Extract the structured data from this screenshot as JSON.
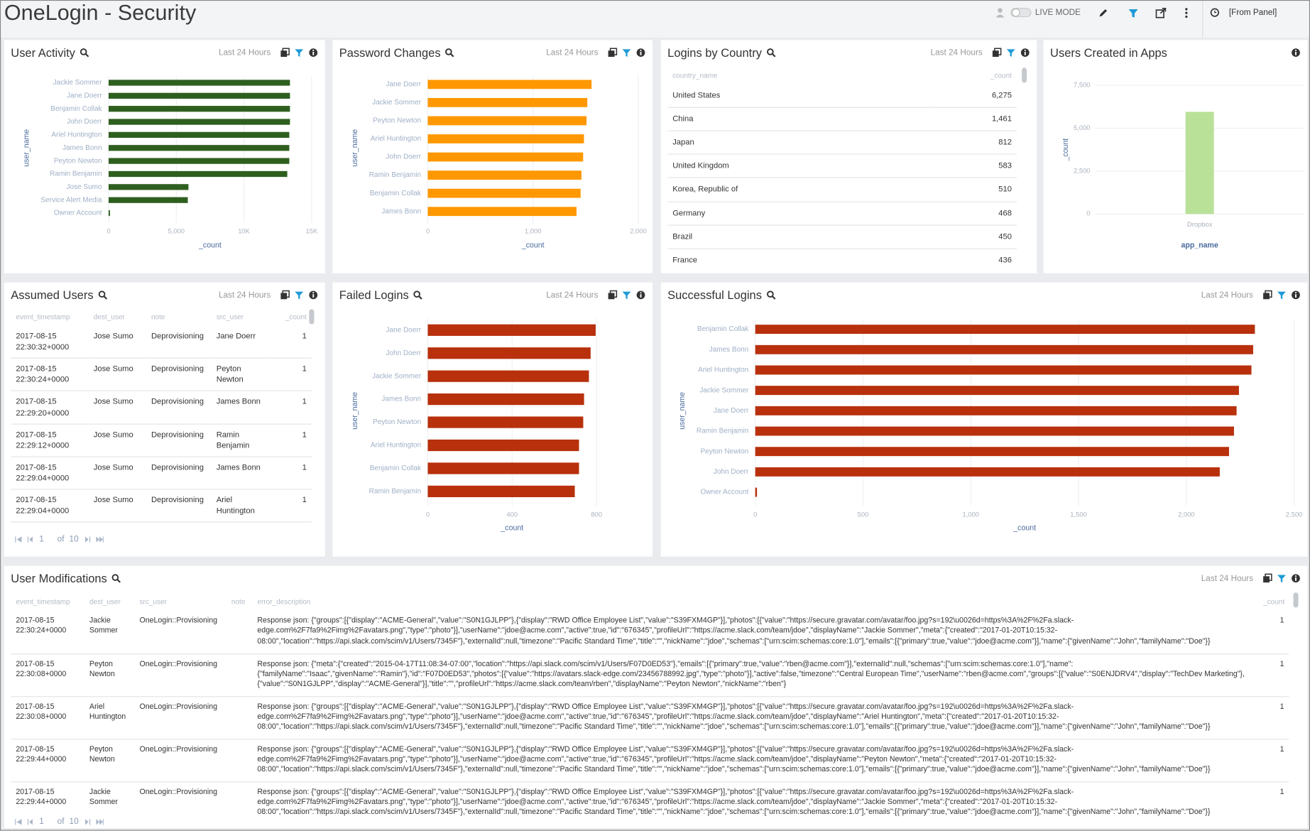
{
  "header": {
    "title": "OneLogin - Security",
    "live_mode": "LIVE MODE",
    "time_range": "[From Panel]"
  },
  "chart_data": [
    {
      "type": "barh",
      "title": "User Activity",
      "subtitle": "Last 24 Hours",
      "x_label": "_count",
      "y_label": "user_name",
      "categories": [
        "Jackie Sommer",
        "Jane Doerr",
        "Benjamin Collak",
        "John Doerr",
        "Ariel Huntington",
        "James Bonn",
        "Peyton Newton",
        "Ramin Benjamin",
        "Jose Sumo",
        "Service Alert Media",
        "Owner Account"
      ],
      "values": [
        13400,
        13400,
        13400,
        13400,
        13350,
        13350,
        13350,
        13200,
        5900,
        5850,
        100
      ],
      "color": "#2e5f1f",
      "xlim": [
        0,
        15000
      ],
      "xticks": [
        0,
        {
          "value": 5000,
          "label": "5,000"
        },
        {
          "value": 10000,
          "label": "10K"
        },
        {
          "value": 15000,
          "label": "15K"
        }
      ]
    },
    {
      "type": "barh",
      "title": "Password Changes",
      "subtitle": "Last 24 Hours",
      "x_label": "_count",
      "y_label": "user_name",
      "categories": [
        "Jane Doerr",
        "Jackie Sommer",
        "Peyton Newton",
        "Ariel Huntington",
        "John Doerr",
        "Ramin Benjamin",
        "Benjamin Collak",
        "James Bonn"
      ],
      "values": [
        1556,
        1516,
        1508,
        1484,
        1476,
        1460,
        1452,
        1413
      ],
      "color": "#ff9800",
      "xlim": [
        0,
        2000
      ],
      "xticks": [
        0,
        {
          "value": 1000,
          "label": "1,000"
        },
        {
          "value": 2000,
          "label": "2,000"
        }
      ]
    },
    {
      "type": "bar",
      "title": "Users Created in Apps",
      "x_label": "app_name",
      "y_label": "_count",
      "categories": [
        "Dropbox"
      ],
      "values": [
        5950
      ],
      "color": "#b9e197",
      "ylim": [
        0,
        7500
      ],
      "yticks": [
        0,
        {
          "value": 2500,
          "label": "2,500"
        },
        {
          "value": 5000,
          "label": "5,000"
        },
        {
          "value": 7500,
          "label": "7,500"
        }
      ]
    },
    {
      "type": "barh",
      "title": "Failed Logins",
      "subtitle": "Last 24 Hours",
      "x_label": "_count",
      "y_label": "user_name",
      "categories": [
        "Jane Doerr",
        "John Doerr",
        "Jackie Sommer",
        "James Bonn",
        "Peyton Newton",
        "Ariel Huntington",
        "Benjamin Collak",
        "Ramin Benjamin"
      ],
      "values": [
        796,
        772,
        764,
        741,
        737,
        717,
        717,
        697
      ],
      "color": "#b8300c",
      "xlim": [
        0,
        800
      ],
      "xticks": [
        0,
        400,
        800
      ]
    },
    {
      "type": "barh",
      "title": "Successful Logins",
      "subtitle": "Last 24 Hours",
      "x_label": "_count",
      "y_label": "user_name",
      "categories": [
        "Benjamin Collak",
        "James Bonn",
        "Ariel Huntington",
        "Jackie Sommer",
        "Jane Doerr",
        "Ramin Benjamin",
        "Peyton Newton",
        "John Doerr",
        "Owner Account"
      ],
      "values": [
        2318,
        2310,
        2302,
        2244,
        2233,
        2221,
        2198,
        2155,
        8
      ],
      "color": "#b8300c",
      "xlim": [
        0,
        2500
      ],
      "xticks": [
        0,
        500,
        {
          "value": 1000,
          "label": "1,000"
        },
        {
          "value": 1500,
          "label": "1,500"
        },
        {
          "value": 2000,
          "label": "2,000"
        },
        {
          "value": 2500,
          "label": "2,500"
        }
      ]
    }
  ],
  "tables": [
    {
      "title": "Logins by Country",
      "subtitle": "Last 24 Hours",
      "columns": [
        "country_name",
        "_count"
      ],
      "rows": [
        [
          "United States",
          "6,275"
        ],
        [
          "China",
          "1,461"
        ],
        [
          "Japan",
          "812"
        ],
        [
          "United Kingdom",
          "583"
        ],
        [
          "Korea, Republic of",
          "510"
        ],
        [
          "Germany",
          "468"
        ],
        [
          "Brazil",
          "450"
        ],
        [
          "France",
          "436"
        ]
      ]
    },
    {
      "title": "Assumed Users",
      "subtitle": "Last 24 Hours",
      "columns": [
        "event_timestamp",
        "dest_user",
        "note",
        "src_user",
        "_count"
      ],
      "rows": [
        [
          "2017-08-15 22:30:32+0000",
          "Jose Sumo",
          "Deprovisioning",
          "Jane Doerr",
          1
        ],
        [
          "2017-08-15 22:30:24+0000",
          "Jose Sumo",
          "Deprovisioning",
          "Peyton Newton",
          1
        ],
        [
          "2017-08-15 22:29:20+0000",
          "Jose Sumo",
          "Deprovisioning",
          "James Bonn",
          1
        ],
        [
          "2017-08-15 22:29:12+0000",
          "Jose Sumo",
          "Deprovisioning",
          "Ramin Benjamin",
          1
        ],
        [
          "2017-08-15 22:29:04+0000",
          "Jose Sumo",
          "Deprovisioning",
          "James Bonn",
          1
        ],
        [
          "2017-08-15 22:29:04+0000",
          "Jose Sumo",
          "Deprovisioning",
          "Ariel Huntington",
          1
        ]
      ],
      "pagination": {
        "page": 1,
        "of": "of",
        "pages": 10
      }
    },
    {
      "title": "User Modifications",
      "subtitle": "Last 24 Hours",
      "columns": [
        "event_timestamp",
        "dest_user",
        "src_user",
        "note",
        "error_description",
        "_count"
      ],
      "rows": [
        [
          "2017-08-15 22:30:24+0000",
          "Jackie Sommer",
          "OneLogin::Provisioning",
          null,
          "Response json: {\"groups\":[{\"display\":\"ACME-General\",\"value\":\"S0N1GJLPP\"},{\"display\":\"RWD Office Employee List\",\"value\":\"S39FXM4GP\"}],\"photos\":[{\"value\":\"https://secure.gravatar.com/avatar/foo.jpg?s=192\\u0026d=https%3A%2F%2Fa.slack-edge.com%2F7fa9%2Fimg%2Favatars.png\",\"type\":\"photo\"}],\"userName\":\"jdoe@acme.com\",\"active\":true,\"id\":\"676345\",\"profileUrl\":\"https://acme.slack.com/team/jdoe\",\"displayName\":\"Jackie Sommer\",\"meta\":{\"created\":\"2017-01-20T10:15:32-08:00\",\"location\":\"https://api.slack.com/scim/v1/Users/7345F\"},\"externalId\":null,\"timezone\":\"Pacific Standard Time\",\"title\":\"\",\"nickName\":\"jdoe\",\"schemas\":[\"urn:scim:schemas:core:1.0\"],\"emails\":[{\"primary\":true,\"value\":\"jdoe@acme.com\"}],\"name\":{\"givenName\":\"John\",\"familyName\":\"Doe\"}}",
          1
        ],
        [
          "2017-08-15 22:30:08+0000",
          "Peyton Newton",
          "OneLogin::Provisioning",
          null,
          "Response json: {\"meta\":{\"created\":\"2015-04-17T11:08:34-07:00\",\"location\":\"https://api.slack.com/scim/v1/Users/F07D0ED53\"},\"emails\":[{\"primary\":true,\"value\":\"rben@acme.com\"}],\"externalId\":null,\"schemas\":[\"urn:scim:schemas:core:1.0\"],\"name\":{\"familyName\":\"Isaac\",\"givenName\":\"Ramin\"},\"id\":\"F07D0ED53\",\"photos\":[{\"value\":\"https://avatars.slack-edge.com/23456788992.jpg\",\"type\":\"photo\"}],\"active\":false,\"timezone\":\"Central European Time\",\"userName\":\"rben@acme.com\",\"groups\":[{\"value\":\"S0ENJDRV4\",\"display\":\"TechDev Marketing\"},{\"value\":\"S0N1GJLPP\",\"display\":\"ACME-General\"}],\"title\":\"\",\"profileUrl\":\"https://acme.slack.com/team/rben\",\"displayName\":\"Peyton Newton\",\"nickName\":\"rben\"}",
          1
        ],
        [
          "2017-08-15 22:30:08+0000",
          "Ariel Huntington",
          "OneLogin::Provisioning",
          null,
          "Response json: {\"groups\":[{\"display\":\"ACME-General\",\"value\":\"S0N1GJLPP\"},{\"display\":\"RWD Office Employee List\",\"value\":\"S39FXM4GP\"}],\"photos\":[{\"value\":\"https://secure.gravatar.com/avatar/foo.jpg?s=192\\u0026d=https%3A%2F%2Fa.slack-edge.com%2F7fa9%2Fimg%2Favatars.png\",\"type\":\"photo\"}],\"userName\":\"jdoe@acme.com\",\"active\":true,\"id\":\"676345\",\"profileUrl\":\"https://acme.slack.com/team/jdoe\",\"displayName\":\"Ariel Huntington\",\"meta\":{\"created\":\"2017-01-20T10:15:32-08:00\",\"location\":\"https://api.slack.com/scim/v1/Users/7345F\"},\"externalId\":null,\"timezone\":\"Pacific Standard Time\",\"title\":\"\",\"nickName\":\"jdoe\",\"schemas\":[\"urn:scim:schemas:core:1.0\"],\"emails\":[{\"primary\":true,\"value\":\"jdoe@acme.com\"}],\"name\":{\"givenName\":\"John\",\"familyName\":\"Doe\"}}",
          1
        ],
        [
          "2017-08-15 22:29:44+0000",
          "Peyton Newton",
          "OneLogin::Provisioning",
          null,
          "Response json: {\"groups\":[{\"display\":\"ACME-General\",\"value\":\"S0N1GJLPP\"},{\"display\":\"RWD Office Employee List\",\"value\":\"S39FXM4GP\"}],\"photos\":[{\"value\":\"https://secure.gravatar.com/avatar/foo.jpg?s=192\\u0026d=https%3A%2F%2Fa.slack-edge.com%2F7fa9%2Fimg%2Favatars.png\",\"type\":\"photo\"}],\"userName\":\"jdoe@acme.com\",\"active\":true,\"id\":\"676345\",\"profileUrl\":\"https://acme.slack.com/team/jdoe\",\"displayName\":\"Peyton Newton\",\"meta\":{\"created\":\"2017-01-20T10:15:32-08:00\",\"location\":\"https://api.slack.com/scim/v1/Users/7345F\"},\"externalId\":null,\"timezone\":\"Pacific Standard Time\",\"title\":\"\",\"nickName\":\"jdoe\",\"schemas\":[\"urn:scim:schemas:core:1.0\"],\"emails\":[{\"primary\":true,\"value\":\"jdoe@acme.com\"}],\"name\":{\"givenName\":\"John\",\"familyName\":\"Doe\"}}",
          1
        ],
        [
          "2017-08-15 22:29:44+0000",
          "Jackie Sommer",
          "OneLogin::Provisioning",
          null,
          "Response json: {\"groups\":[{\"display\":\"ACME-General\",\"value\":\"S0N1GJLPP\"},{\"display\":\"RWD Office Employee List\",\"value\":\"S39FXM4GP\"}],\"photos\":[{\"value\":\"https://secure.gravatar.com/avatar/foo.jpg?s=192\\u0026d=https%3A%2F%2Fa.slack-edge.com%2F7fa9%2Fimg%2Favatars.png\",\"type\":\"photo\"}],\"userName\":\"jdoe@acme.com\",\"active\":true,\"id\":\"676345\",\"profileUrl\":\"https://acme.slack.com/team/jdoe\",\"displayName\":\"Jackie Sommer\",\"meta\":{\"created\":\"2017-01-20T10:15:32-08:00\",\"location\":\"https://api.slack.com/scim/v1/Users/7345F\"},\"externalId\":null,\"timezone\":\"Pacific Standard Time\",\"title\":\"\",\"nickName\":\"jdoe\",\"schemas\":[\"urn:scim:schemas:core:1.0\"],\"emails\":[{\"primary\":true,\"value\":\"jdoe@acme.com\"}],\"name\":{\"givenName\":\"John\",\"familyName\":\"Doe\"}}",
          1
        ]
      ],
      "pagination": {
        "page": 1,
        "of": "of",
        "pages": 10
      }
    }
  ]
}
